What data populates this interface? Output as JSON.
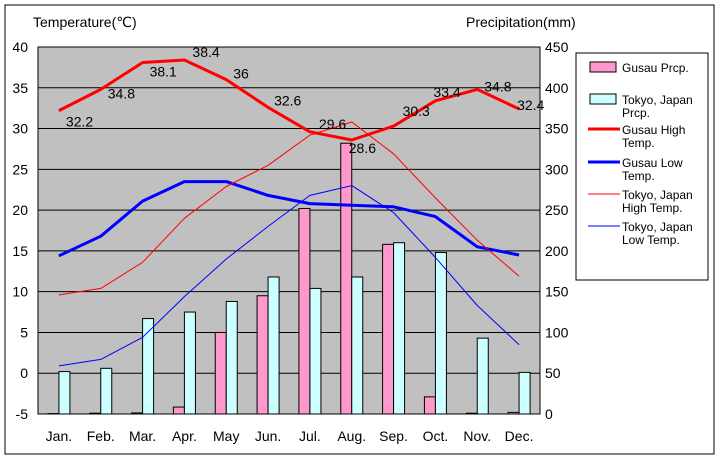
{
  "chart_data": {
    "type": "bar+line",
    "title": "",
    "categories": [
      "Jan.",
      "Feb.",
      "Mar.",
      "Apr.",
      "May",
      "Jun.",
      "Jul.",
      "Aug.",
      "Sep.",
      "Oct.",
      "Nov.",
      "Dec."
    ],
    "y_left": {
      "label": "Temperature(℃)",
      "min": -5,
      "max": 40,
      "step": 5
    },
    "y_right": {
      "label": "Precipitation(mm)",
      "min": 0,
      "max": 450,
      "step": 50
    },
    "grid": true,
    "legend_position": "right",
    "bar_series": [
      {
        "name": "Gusau Prcp.",
        "axis": "right",
        "color": "#ff99cc",
        "values": [
          0.5,
          1,
          1.3,
          8.5,
          100,
          145,
          252,
          332,
          208,
          21,
          1,
          2
        ]
      },
      {
        "name": "Tokyo, Japan Prcp.",
        "axis": "right",
        "color": "#ccffff",
        "values": [
          52,
          56,
          117,
          125,
          138,
          168,
          154,
          168,
          210,
          198,
          93,
          51
        ]
      }
    ],
    "line_series": [
      {
        "name": "Gusau High Temp.",
        "axis": "left",
        "color": "#ff0000",
        "width": 3,
        "show_labels": true,
        "values": [
          32.2,
          34.8,
          38.1,
          38.4,
          36,
          32.6,
          29.6,
          28.6,
          30.3,
          33.4,
          34.8,
          32.4
        ]
      },
      {
        "name": "Gusau Low Temp.",
        "axis": "left",
        "color": "#0000ff",
        "width": 3,
        "show_labels": false,
        "values": [
          14.4,
          16.8,
          21.1,
          23.5,
          23.5,
          21.8,
          20.8,
          20.6,
          20.4,
          19.2,
          15.5,
          14.5
        ]
      },
      {
        "name": "Tokyo, Japan High Temp.",
        "axis": "left",
        "color": "#ff0000",
        "width": 1,
        "show_labels": false,
        "values": [
          9.6,
          10.4,
          13.6,
          19.0,
          22.9,
          25.5,
          29.2,
          30.8,
          26.9,
          21.5,
          16.3,
          11.9
        ]
      },
      {
        "name": "Tokyo, Japan Low Temp.",
        "axis": "left",
        "color": "#0000ff",
        "width": 1,
        "show_labels": false,
        "values": [
          0.9,
          1.7,
          4.4,
          9.4,
          14.0,
          18.0,
          21.8,
          23.0,
          19.7,
          14.2,
          8.3,
          3.5
        ]
      }
    ]
  }
}
